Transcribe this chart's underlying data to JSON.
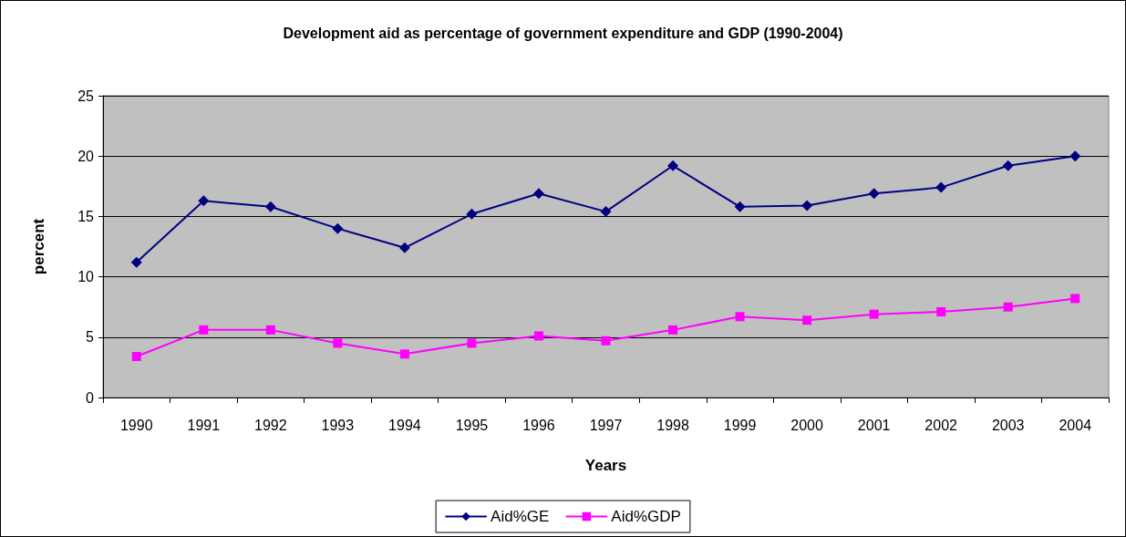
{
  "chart_data": {
    "type": "line",
    "title": "Development aid as percentage of government expenditure and GDP (1990-2004)",
    "xlabel": "Years",
    "ylabel": "percent",
    "categories": [
      "1990",
      "1991",
      "1992",
      "1993",
      "1994",
      "1995",
      "1996",
      "1997",
      "1998",
      "1999",
      "2000",
      "2001",
      "2002",
      "2003",
      "2004"
    ],
    "series": [
      {
        "name": "Aid%GE",
        "color": "#000080",
        "marker": "diamond",
        "values": [
          11.2,
          16.3,
          15.8,
          14.0,
          12.4,
          15.2,
          16.9,
          15.4,
          19.2,
          15.8,
          15.9,
          16.9,
          17.4,
          19.2,
          20.0
        ]
      },
      {
        "name": "Aid%GDP",
        "color": "#ff00ff",
        "marker": "square",
        "values": [
          3.4,
          5.6,
          5.6,
          4.5,
          3.6,
          4.5,
          5.1,
          4.7,
          5.6,
          6.7,
          6.4,
          6.9,
          7.1,
          7.5,
          8.2
        ]
      }
    ],
    "ylim": [
      0,
      25
    ],
    "yticks": [
      0,
      5,
      10,
      15,
      20,
      25
    ],
    "grid": "y",
    "legend": "bottom"
  }
}
